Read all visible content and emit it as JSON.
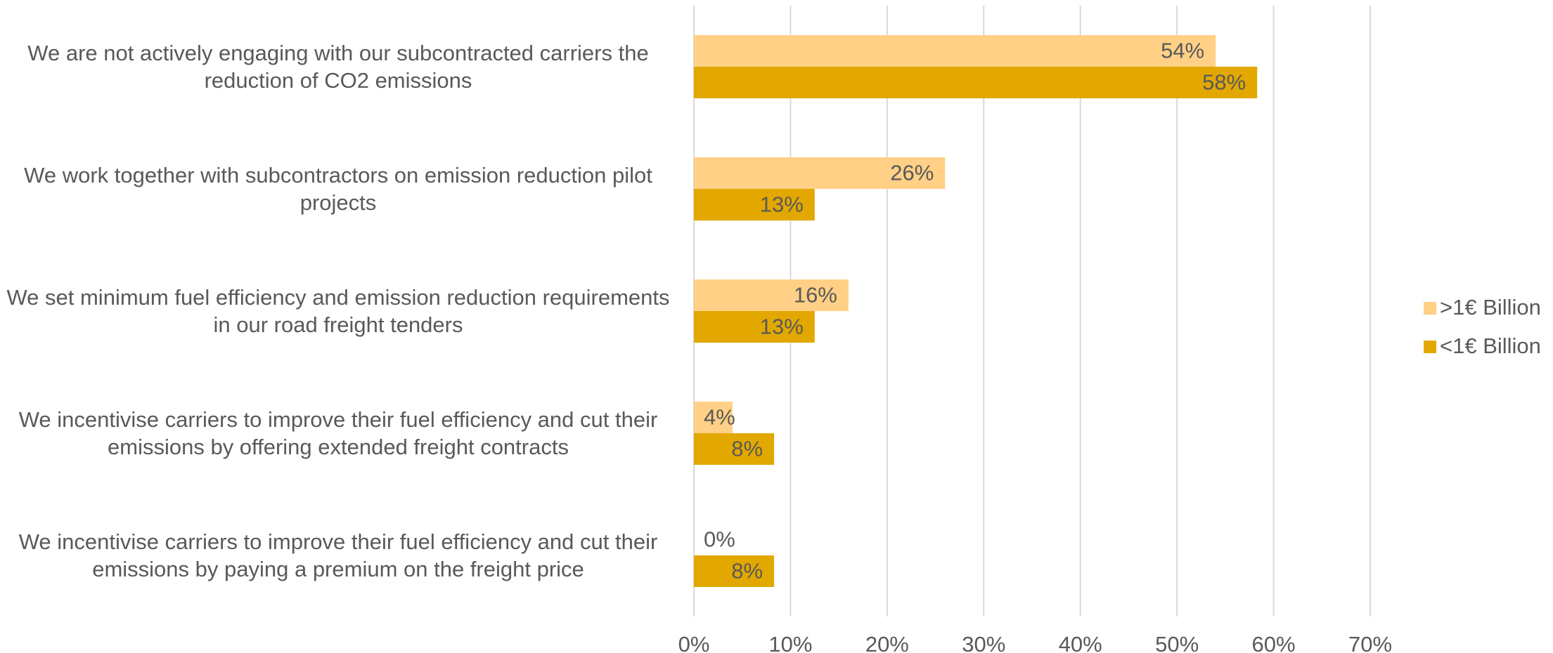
{
  "chart_data": {
    "type": "bar",
    "orientation": "horizontal",
    "categories": [
      "We are not actively engaging with our subcontracted carriers the reduction of CO2 emissions",
      "We work together with subcontractors on emission reduction pilot projects",
      "We set minimum fuel efficiency and emission reduction requirements in our road freight tenders",
      "We incentivise carriers to improve their fuel efficiency and cut their emissions by offering extended freight contracts",
      "We incentivise carriers to improve their fuel efficiency and cut their emissions by paying a premium on the freight price"
    ],
    "series": [
      {
        "name": ">1€ Billion",
        "color": "#ffd085",
        "values": [
          54,
          26,
          16,
          4,
          0
        ],
        "value_labels": [
          "54%",
          "26%",
          "16%",
          "4%",
          "0%"
        ]
      },
      {
        "name": "<1€ Billion",
        "color": "#e2a800",
        "values": [
          58.3,
          12.5,
          12.5,
          8.3,
          8.3
        ],
        "value_labels": [
          "58%",
          "13%",
          "13%",
          "8%",
          "8%"
        ]
      }
    ],
    "xlim": [
      0,
      70
    ],
    "xticks": [
      {
        "value": 0,
        "label": "0%"
      },
      {
        "value": 10,
        "label": "10%"
      },
      {
        "value": 20,
        "label": "20%"
      },
      {
        "value": 30,
        "label": "30%"
      },
      {
        "value": 40,
        "label": "40%"
      },
      {
        "value": 50,
        "label": "50%"
      },
      {
        "value": 60,
        "label": "60%"
      },
      {
        "value": 70,
        "label": "70%"
      }
    ],
    "grid": true,
    "legend": "right"
  }
}
